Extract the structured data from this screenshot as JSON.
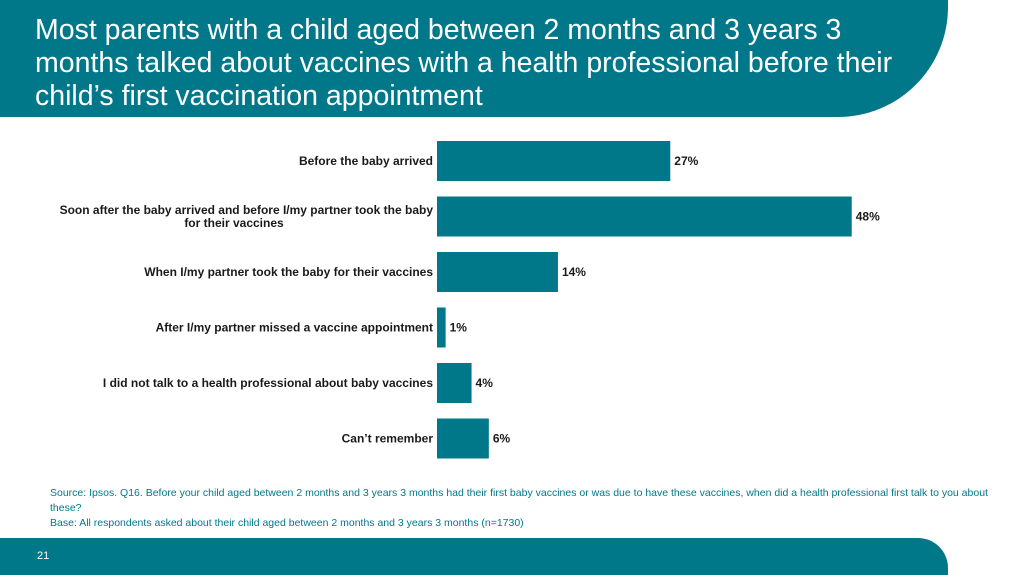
{
  "colors": {
    "accent": "#00788a",
    "bar": "#00788a"
  },
  "header": {
    "title": "Most parents with a child aged between 2 months and 3 years 3 months talked about vaccines with a health professional before their child’s first vaccination appointment"
  },
  "chart_data": {
    "type": "bar",
    "orientation": "horizontal",
    "categories": [
      [
        "Before the baby arrived"
      ],
      [
        "Soon after the baby arrived and before I/my partner took the baby",
        "for their vaccines"
      ],
      [
        "When I/my partner took the baby for their vaccines"
      ],
      [
        "After I/my partner missed a vaccine appointment"
      ],
      [
        "I did not talk to a health professional about baby vaccines"
      ],
      [
        "Can’t remember"
      ]
    ],
    "values": [
      27,
      48,
      14,
      1,
      4,
      6
    ],
    "value_labels": [
      "27%",
      "48%",
      "14%",
      "1%",
      "4%",
      "6%"
    ],
    "xlim": [
      0,
      50
    ],
    "grid": false,
    "legend": "none"
  },
  "notes": {
    "source": "Source: Ipsos. Q16. Before your child aged between 2 months and 3 years 3 months had their first baby vaccines or was due to have these vaccines, when did a health professional first talk to you about these?",
    "base": "Base: All respondents asked about their child aged between 2 months and 3 years 3 months (n=1730)"
  },
  "footer": {
    "page_number": "21"
  }
}
